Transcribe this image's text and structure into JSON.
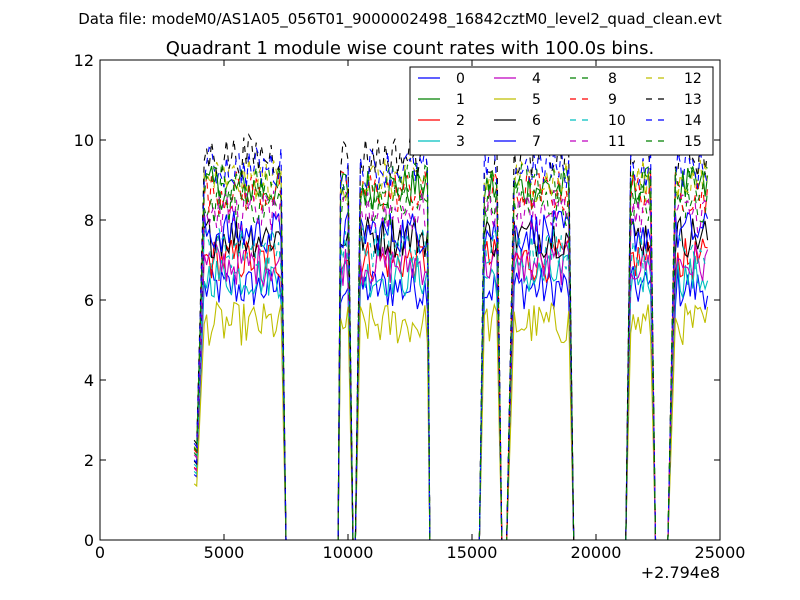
{
  "chart_data": {
    "type": "line",
    "suptitle": "Data file: modeM0/AS1A05_056T01_9000002498_16842cztM0_level2_quad_clean.evt",
    "title": "Quadrant 1 module wise count rates with 100.0s bins.",
    "xlabel": "",
    "ylabel": "",
    "xlim": [
      0,
      25000
    ],
    "ylim": [
      0,
      12
    ],
    "x_offset_label": "+2.794e8",
    "xticks": [
      0,
      5000,
      10000,
      15000,
      20000,
      25000
    ],
    "xtick_labels": [
      "0",
      "5000",
      "10000",
      "15000",
      "20000",
      "25000"
    ],
    "yticks": [
      0,
      2,
      4,
      6,
      8,
      10,
      12
    ],
    "ytick_labels": [
      "0",
      "2",
      "4",
      "6",
      "8",
      "10",
      "12"
    ],
    "grid": false,
    "legend_position": "top-right",
    "legend_columns": 4,
    "bin_seconds": 100,
    "segments": [
      {
        "ramp_start": 3800,
        "start": 4200,
        "end": 7300,
        "drop_end": 7500
      },
      {
        "ramp_start": 9600,
        "start": 9700,
        "end": 10000,
        "drop_end": 10200
      },
      {
        "ramp_start": 10300,
        "start": 10500,
        "end": 13200,
        "drop_end": 13300
      },
      {
        "ramp_start": 15300,
        "start": 15500,
        "end": 16000,
        "drop_end": 16200
      },
      {
        "ramp_start": 16400,
        "start": 16700,
        "end": 18900,
        "drop_end": 19100
      },
      {
        "ramp_start": 21200,
        "start": 21400,
        "end": 22200,
        "drop_end": 22400
      },
      {
        "ramp_start": 22900,
        "start": 23200,
        "end": 24500,
        "drop_end": 24500
      }
    ],
    "series": [
      {
        "name": "0",
        "color": "#0000ff",
        "dash": "solid",
        "level": 6.3
      },
      {
        "name": "1",
        "color": "#008000",
        "dash": "solid",
        "level": 8.8
      },
      {
        "name": "2",
        "color": "#ff0000",
        "dash": "solid",
        "level": 7.0
      },
      {
        "name": "3",
        "color": "#00bfbf",
        "dash": "solid",
        "level": 6.6
      },
      {
        "name": "4",
        "color": "#bf00bf",
        "dash": "solid",
        "level": 6.9
      },
      {
        "name": "5",
        "color": "#bfbf00",
        "dash": "solid",
        "level": 5.4
      },
      {
        "name": "6",
        "color": "#000000",
        "dash": "solid",
        "level": 7.6
      },
      {
        "name": "7",
        "color": "#0000ff",
        "dash": "solid",
        "level": 7.7
      },
      {
        "name": "8",
        "color": "#008000",
        "dash": "dashed",
        "level": 8.4
      },
      {
        "name": "9",
        "color": "#ff0000",
        "dash": "dashed",
        "level": 8.7
      },
      {
        "name": "10",
        "color": "#00bfbf",
        "dash": "dashed",
        "level": 7.3
      },
      {
        "name": "11",
        "color": "#bf00bf",
        "dash": "dashed",
        "level": 8.2
      },
      {
        "name": "12",
        "color": "#bfbf00",
        "dash": "dashed",
        "level": 9.0
      },
      {
        "name": "13",
        "color": "#000000",
        "dash": "dashed",
        "level": 9.6
      },
      {
        "name": "14",
        "color": "#0000ff",
        "dash": "dashed",
        "level": 9.3
      },
      {
        "name": "15",
        "color": "#008000",
        "dash": "dashed",
        "level": 8.9
      }
    ]
  }
}
